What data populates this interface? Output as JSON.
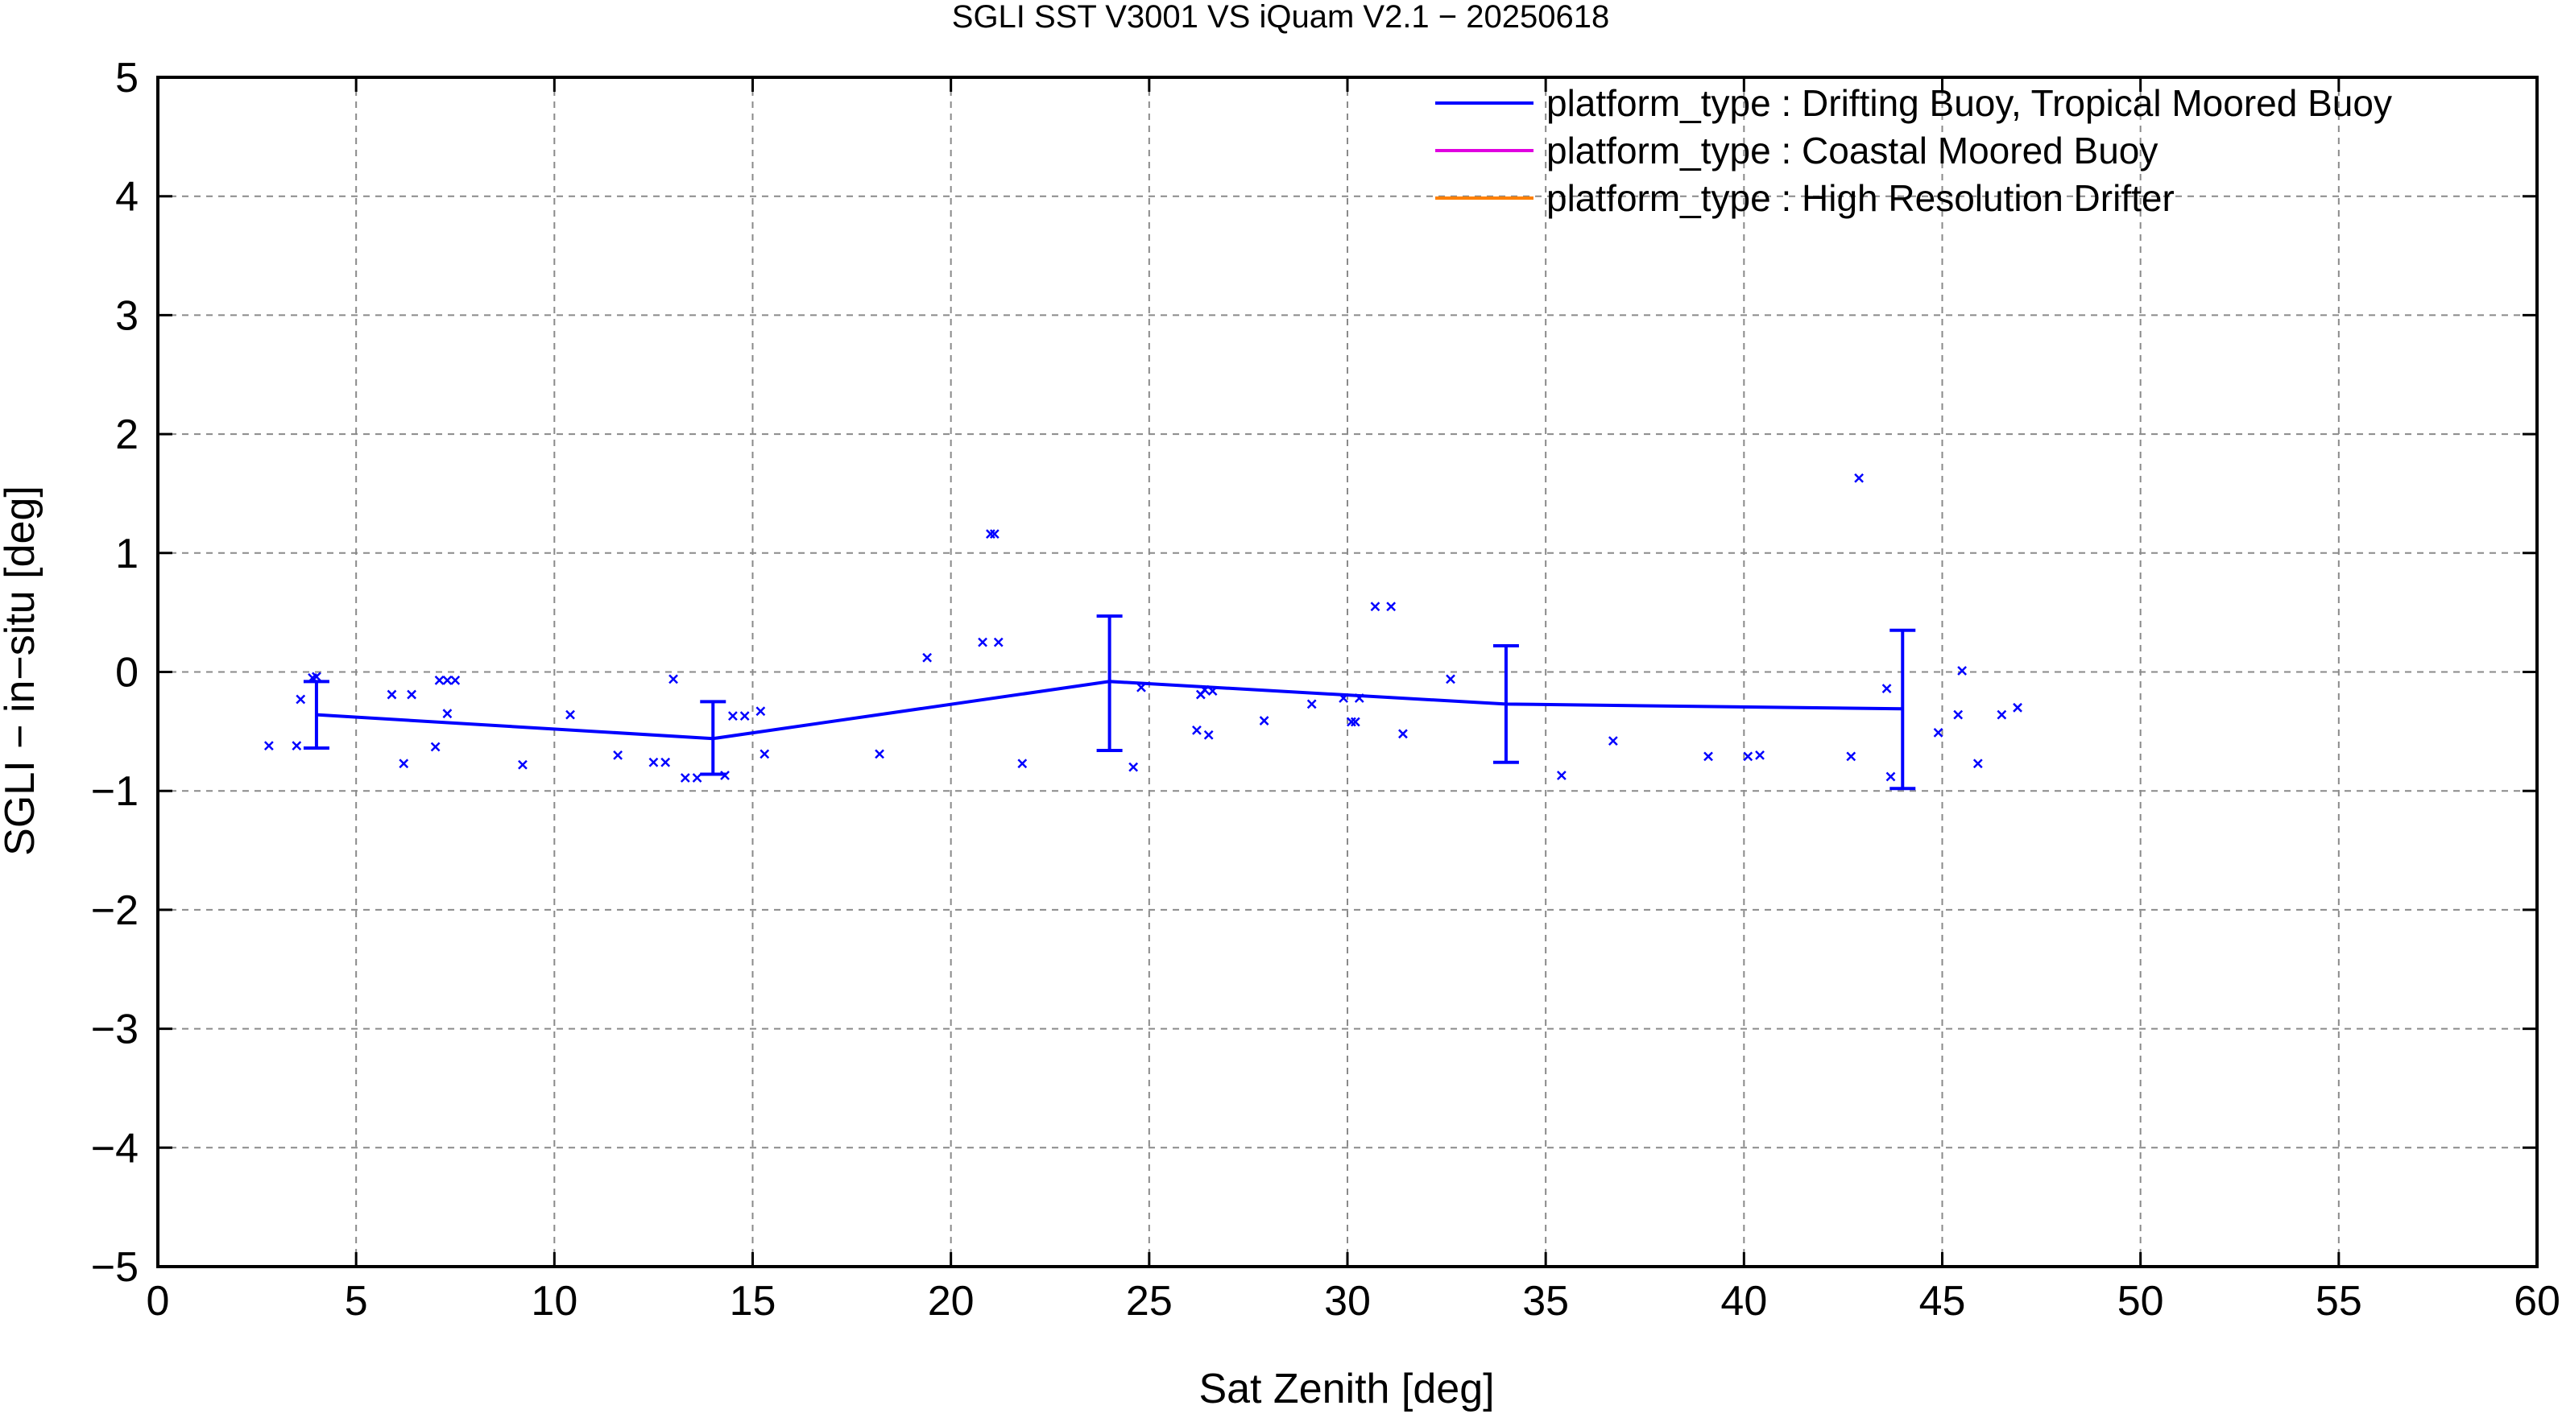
{
  "chart_data": {
    "type": "scatter",
    "title": "SGLI SST V3001 VS iQuam V2.1  − 20250618",
    "xlabel": "Sat Zenith [deg]",
    "ylabel": "SGLI − in−situ [deg]",
    "xlim": [
      0,
      60
    ],
    "ylim": [
      -5,
      5
    ],
    "xticks": [
      0,
      5,
      10,
      15,
      20,
      25,
      30,
      35,
      40,
      45,
      50,
      55,
      60
    ],
    "yticks": [
      -5,
      -4,
      -3,
      -2,
      -1,
      0,
      1,
      2,
      3,
      4,
      5
    ],
    "ytick_labels": [
      "−5",
      "−4",
      "−3",
      "−2",
      "−1",
      "0",
      "1",
      "2",
      "3",
      "4",
      "5"
    ],
    "grid": true,
    "legend_position": "top-right",
    "legend": [
      {
        "label": "platform_type : Drifting Buoy, Tropical Moored Buoy",
        "color": "#0000ff"
      },
      {
        "label": "platform_type : Coastal Moored Buoy",
        "color": "#e000e0"
      },
      {
        "label": "platform_type : High Resolution Drifter",
        "color": "#ff8000"
      }
    ],
    "mean_line": {
      "color": "#0000ff",
      "points": [
        {
          "x": 4,
          "y": -0.36,
          "err_low": -0.64,
          "err_high": -0.08
        },
        {
          "x": 14,
          "y": -0.56,
          "err_low": -0.86,
          "err_high": -0.25
        },
        {
          "x": 24,
          "y": -0.08,
          "err_low": -0.66,
          "err_high": 0.47
        },
        {
          "x": 34,
          "y": -0.27,
          "err_low": -0.76,
          "err_high": 0.22
        },
        {
          "x": 44,
          "y": -0.31,
          "err_low": -0.98,
          "err_high": 0.35
        }
      ]
    },
    "scatter": {
      "color": "#0000ff",
      "points": [
        [
          2.8,
          -0.62
        ],
        [
          3.5,
          -0.62
        ],
        [
          3.6,
          -0.23
        ],
        [
          3.9,
          -0.05
        ],
        [
          4.0,
          -0.04
        ],
        [
          5.9,
          -0.19
        ],
        [
          6.2,
          -0.77
        ],
        [
          6.4,
          -0.19
        ],
        [
          7.0,
          -0.63
        ],
        [
          7.1,
          -0.07
        ],
        [
          7.3,
          -0.07
        ],
        [
          7.3,
          -0.35
        ],
        [
          7.5,
          -0.07
        ],
        [
          9.2,
          -0.78
        ],
        [
          10.4,
          -0.36
        ],
        [
          11.6,
          -0.7
        ],
        [
          12.5,
          -0.76
        ],
        [
          12.8,
          -0.76
        ],
        [
          13.0,
          -0.06
        ],
        [
          13.3,
          -0.89
        ],
        [
          13.6,
          -0.89
        ],
        [
          14.3,
          -0.87
        ],
        [
          14.5,
          -0.37
        ],
        [
          14.8,
          -0.37
        ],
        [
          15.2,
          -0.33
        ],
        [
          15.3,
          -0.69
        ],
        [
          18.2,
          -0.69
        ],
        [
          19.4,
          0.12
        ],
        [
          20.8,
          0.25
        ],
        [
          21.0,
          1.16
        ],
        [
          21.1,
          1.16
        ],
        [
          21.2,
          0.25
        ],
        [
          21.8,
          -0.77
        ],
        [
          24.6,
          -0.8
        ],
        [
          24.8,
          -0.13
        ],
        [
          26.2,
          -0.49
        ],
        [
          26.3,
          -0.19
        ],
        [
          26.4,
          -0.15
        ],
        [
          26.5,
          -0.53
        ],
        [
          26.6,
          -0.16
        ],
        [
          27.9,
          -0.41
        ],
        [
          29.1,
          -0.27
        ],
        [
          29.9,
          -0.22
        ],
        [
          30.1,
          -0.42
        ],
        [
          30.2,
          -0.42
        ],
        [
          30.3,
          -0.22
        ],
        [
          30.7,
          0.55
        ],
        [
          31.1,
          0.55
        ],
        [
          31.4,
          -0.52
        ],
        [
          32.6,
          -0.06
        ],
        [
          35.4,
          -0.87
        ],
        [
          36.7,
          -0.58
        ],
        [
          39.1,
          -0.71
        ],
        [
          40.1,
          -0.71
        ],
        [
          40.4,
          -0.7
        ],
        [
          42.7,
          -0.71
        ],
        [
          42.9,
          1.63
        ],
        [
          43.6,
          -0.14
        ],
        [
          43.7,
          -0.88
        ],
        [
          44.9,
          -0.51
        ],
        [
          45.4,
          -0.36
        ],
        [
          45.5,
          0.01
        ],
        [
          45.9,
          -0.77
        ],
        [
          46.5,
          -0.36
        ],
        [
          46.9,
          -0.3
        ]
      ]
    }
  }
}
